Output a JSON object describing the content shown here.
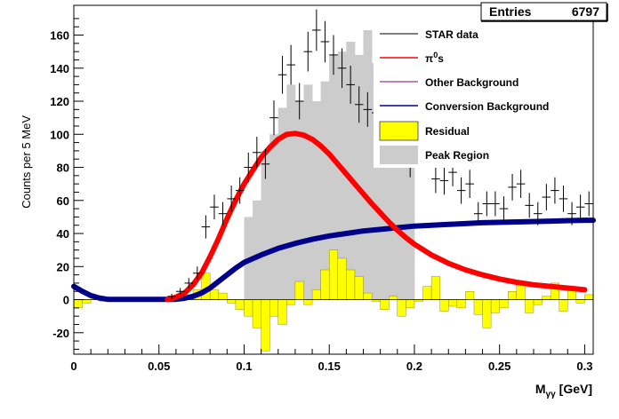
{
  "stats": {
    "label": "Entries",
    "value": "6797"
  },
  "chart_data": {
    "type": "histogram",
    "xlabel": "M_γγ [GeV]",
    "xlabel_main": "M",
    "xlabel_sub": "γγ",
    "xlabel_unit": "[GeV]",
    "ylabel": "Counts per 5 MeV",
    "xlim": [
      0,
      0.305
    ],
    "ylim": [
      -33,
      178
    ],
    "xticks": [
      0,
      0.05,
      0.1,
      0.15,
      0.2,
      0.25,
      0.3
    ],
    "xtick_labels": [
      "0",
      "0.05",
      "0.1",
      "0.15",
      "0.2",
      "0.25",
      "0.3"
    ],
    "yticks": [
      -20,
      0,
      20,
      40,
      60,
      80,
      100,
      120,
      140,
      160
    ],
    "ytick_labels": [
      "-20",
      "0",
      "20",
      "40",
      "60",
      "80",
      "100",
      "120",
      "140",
      "160"
    ],
    "bin_width": 0.005,
    "peak_region": {
      "x_start": 0.1,
      "x_end": 0.2,
      "values": [
        50,
        60,
        90,
        100,
        116,
        130,
        120,
        130,
        120,
        132,
        148,
        150,
        156,
        148,
        163,
        143,
        130,
        108,
        95,
        100
      ]
    },
    "residual": [
      {
        "x": 0.0,
        "y": -5
      },
      {
        "x": 0.005,
        "y": -2
      },
      {
        "x": 0.01,
        "y": 1
      },
      {
        "x": 0.015,
        "y": -1
      },
      {
        "x": 0.065,
        "y": 2
      },
      {
        "x": 0.07,
        "y": 6
      },
      {
        "x": 0.075,
        "y": 16
      },
      {
        "x": 0.08,
        "y": 6
      },
      {
        "x": 0.085,
        "y": 4
      },
      {
        "x": 0.09,
        "y": -2
      },
      {
        "x": 0.095,
        "y": -6
      },
      {
        "x": 0.1,
        "y": -10
      },
      {
        "x": 0.105,
        "y": -17
      },
      {
        "x": 0.11,
        "y": -31
      },
      {
        "x": 0.115,
        "y": -10
      },
      {
        "x": 0.12,
        "y": -15
      },
      {
        "x": 0.125,
        "y": -3
      },
      {
        "x": 0.13,
        "y": 11
      },
      {
        "x": 0.135,
        "y": -3
      },
      {
        "x": 0.14,
        "y": 6
      },
      {
        "x": 0.145,
        "y": 18
      },
      {
        "x": 0.15,
        "y": 30
      },
      {
        "x": 0.155,
        "y": 25
      },
      {
        "x": 0.16,
        "y": 18
      },
      {
        "x": 0.165,
        "y": 14
      },
      {
        "x": 0.17,
        "y": 4
      },
      {
        "x": 0.175,
        "y": -1
      },
      {
        "x": 0.18,
        "y": -6
      },
      {
        "x": 0.185,
        "y": 2
      },
      {
        "x": 0.19,
        "y": -10
      },
      {
        "x": 0.195,
        "y": -5
      },
      {
        "x": 0.2,
        "y": -1
      },
      {
        "x": 0.205,
        "y": 8
      },
      {
        "x": 0.21,
        "y": 14
      },
      {
        "x": 0.215,
        "y": -7
      },
      {
        "x": 0.22,
        "y": -4
      },
      {
        "x": 0.225,
        "y": -5
      },
      {
        "x": 0.23,
        "y": 5
      },
      {
        "x": 0.235,
        "y": -9
      },
      {
        "x": 0.24,
        "y": -17
      },
      {
        "x": 0.245,
        "y": -8
      },
      {
        "x": 0.25,
        "y": -5
      },
      {
        "x": 0.255,
        "y": 5
      },
      {
        "x": 0.26,
        "y": 9
      },
      {
        "x": 0.265,
        "y": -8
      },
      {
        "x": 0.27,
        "y": -3
      },
      {
        "x": 0.275,
        "y": 2
      },
      {
        "x": 0.28,
        "y": 10
      },
      {
        "x": 0.285,
        "y": -7
      },
      {
        "x": 0.29,
        "y": 8
      },
      {
        "x": 0.295,
        "y": -2
      },
      {
        "x": 0.3,
        "y": 3
      }
    ],
    "star_data": [
      {
        "x": 0.0575,
        "y": 2,
        "err": 1.5
      },
      {
        "x": 0.0625,
        "y": 5,
        "err": 2
      },
      {
        "x": 0.0675,
        "y": 10,
        "err": 3
      },
      {
        "x": 0.0725,
        "y": 16,
        "err": 4
      },
      {
        "x": 0.0775,
        "y": 44,
        "err": 7
      },
      {
        "x": 0.0825,
        "y": 56,
        "err": 7.5
      },
      {
        "x": 0.0875,
        "y": 52,
        "err": 7
      },
      {
        "x": 0.0925,
        "y": 61,
        "err": 8
      },
      {
        "x": 0.0975,
        "y": 66,
        "err": 8
      },
      {
        "x": 0.1025,
        "y": 80,
        "err": 9
      },
      {
        "x": 0.1075,
        "y": 89,
        "err": 9.5
      },
      {
        "x": 0.1125,
        "y": 82,
        "err": 9
      },
      {
        "x": 0.1175,
        "y": 110,
        "err": 10.5
      },
      {
        "x": 0.1225,
        "y": 136,
        "err": 11.5
      },
      {
        "x": 0.1275,
        "y": 142,
        "err": 12
      },
      {
        "x": 0.1325,
        "y": 120,
        "err": 11
      },
      {
        "x": 0.1375,
        "y": 150,
        "err": 12
      },
      {
        "x": 0.1425,
        "y": 163,
        "err": 12.5
      },
      {
        "x": 0.1475,
        "y": 156,
        "err": 12.5
      },
      {
        "x": 0.1525,
        "y": 148,
        "err": 12
      },
      {
        "x": 0.1575,
        "y": 140,
        "err": 12
      },
      {
        "x": 0.1625,
        "y": 130,
        "err": 11.5
      },
      {
        "x": 0.1675,
        "y": 118,
        "err": 11
      },
      {
        "x": 0.1725,
        "y": 115,
        "err": 10.5
      },
      {
        "x": 0.1775,
        "y": 113,
        "err": 10.5
      },
      {
        "x": 0.1825,
        "y": 102,
        "err": 10
      },
      {
        "x": 0.1875,
        "y": 96,
        "err": 10
      },
      {
        "x": 0.1925,
        "y": 90,
        "err": 9.5
      },
      {
        "x": 0.1975,
        "y": 83,
        "err": 9
      },
      {
        "x": 0.2125,
        "y": 73,
        "err": 8.5
      },
      {
        "x": 0.2175,
        "y": 72,
        "err": 8.5
      },
      {
        "x": 0.2225,
        "y": 77,
        "err": 8.5
      },
      {
        "x": 0.2275,
        "y": 66,
        "err": 8
      },
      {
        "x": 0.2325,
        "y": 70,
        "err": 8.5
      },
      {
        "x": 0.2375,
        "y": 52,
        "err": 7
      },
      {
        "x": 0.2425,
        "y": 58,
        "err": 7.5
      },
      {
        "x": 0.2475,
        "y": 58,
        "err": 7.5
      },
      {
        "x": 0.2525,
        "y": 55,
        "err": 7.5
      },
      {
        "x": 0.2575,
        "y": 68,
        "err": 8
      },
      {
        "x": 0.2625,
        "y": 70,
        "err": 8.5
      },
      {
        "x": 0.2675,
        "y": 57,
        "err": 7.5
      },
      {
        "x": 0.2725,
        "y": 52,
        "err": 7
      },
      {
        "x": 0.2775,
        "y": 62,
        "err": 8
      },
      {
        "x": 0.2825,
        "y": 66,
        "err": 8
      },
      {
        "x": 0.2875,
        "y": 61,
        "err": 8
      },
      {
        "x": 0.2925,
        "y": 52,
        "err": 7
      },
      {
        "x": 0.2975,
        "y": 56,
        "err": 7.5
      },
      {
        "x": 0.3025,
        "y": 58,
        "err": 7.5
      }
    ],
    "pi0_fit": {
      "color": "#ff0000",
      "points": [
        [
          0.055,
          0
        ],
        [
          0.06,
          1.5
        ],
        [
          0.065,
          4
        ],
        [
          0.07,
          9
        ],
        [
          0.075,
          16
        ],
        [
          0.08,
          26
        ],
        [
          0.085,
          37
        ],
        [
          0.09,
          49
        ],
        [
          0.095,
          60
        ],
        [
          0.1,
          70
        ],
        [
          0.105,
          78
        ],
        [
          0.11,
          86
        ],
        [
          0.115,
          92
        ],
        [
          0.12,
          97
        ],
        [
          0.125,
          100
        ],
        [
          0.13,
          100.5
        ],
        [
          0.135,
          99.5
        ],
        [
          0.14,
          97
        ],
        [
          0.145,
          93
        ],
        [
          0.15,
          88
        ],
        [
          0.155,
          82
        ],
        [
          0.16,
          76
        ],
        [
          0.165,
          70
        ],
        [
          0.17,
          64
        ],
        [
          0.175,
          58
        ],
        [
          0.18,
          52.5
        ],
        [
          0.185,
          47
        ],
        [
          0.19,
          42
        ],
        [
          0.195,
          37.5
        ],
        [
          0.2,
          33.5
        ],
        [
          0.21,
          27
        ],
        [
          0.22,
          22
        ],
        [
          0.23,
          18
        ],
        [
          0.24,
          15
        ],
        [
          0.25,
          12.5
        ],
        [
          0.26,
          10.5
        ],
        [
          0.27,
          9
        ],
        [
          0.28,
          8
        ],
        [
          0.29,
          7
        ],
        [
          0.3,
          6
        ]
      ]
    },
    "conversion_fit": {
      "color": "#00008b",
      "points": [
        [
          0.0,
          8
        ],
        [
          0.005,
          5
        ],
        [
          0.01,
          2.5
        ],
        [
          0.015,
          1
        ],
        [
          0.02,
          0.2
        ],
        [
          0.06,
          0.2
        ],
        [
          0.065,
          0.8
        ],
        [
          0.07,
          2
        ],
        [
          0.075,
          4
        ],
        [
          0.08,
          7
        ],
        [
          0.085,
          11
        ],
        [
          0.09,
          15
        ],
        [
          0.095,
          19
        ],
        [
          0.1,
          22.5
        ],
        [
          0.11,
          27
        ],
        [
          0.12,
          31
        ],
        [
          0.13,
          34
        ],
        [
          0.14,
          36.5
        ],
        [
          0.15,
          38.5
        ],
        [
          0.16,
          40
        ],
        [
          0.17,
          41.5
        ],
        [
          0.18,
          42.5
        ],
        [
          0.19,
          43.5
        ],
        [
          0.2,
          44.5
        ],
        [
          0.22,
          45.5
        ],
        [
          0.24,
          46.5
        ],
        [
          0.26,
          47
        ],
        [
          0.28,
          47.5
        ],
        [
          0.3,
          48
        ],
        [
          0.305,
          48
        ]
      ]
    },
    "legend": [
      {
        "label": "STAR data",
        "style": "line",
        "color": "#000000"
      },
      {
        "label": "π⁰s",
        "label_main": "π",
        "label_sup": "0",
        "label_tail": "s",
        "style": "line",
        "color": "#ff0000"
      },
      {
        "label": "Other Background",
        "style": "line",
        "color": "#800080"
      },
      {
        "label": "Conversion Background",
        "style": "line",
        "color": "#00008b"
      },
      {
        "label": "Residual",
        "style": "box",
        "color": "#ffff00"
      },
      {
        "label": "Peak Region",
        "style": "box",
        "color": "#cccccc"
      }
    ],
    "colors": {
      "peak_region": "#cccccc",
      "residual_fill": "#ffff00",
      "residual_line": "#7a7a00",
      "zero_line": "#800080"
    }
  }
}
